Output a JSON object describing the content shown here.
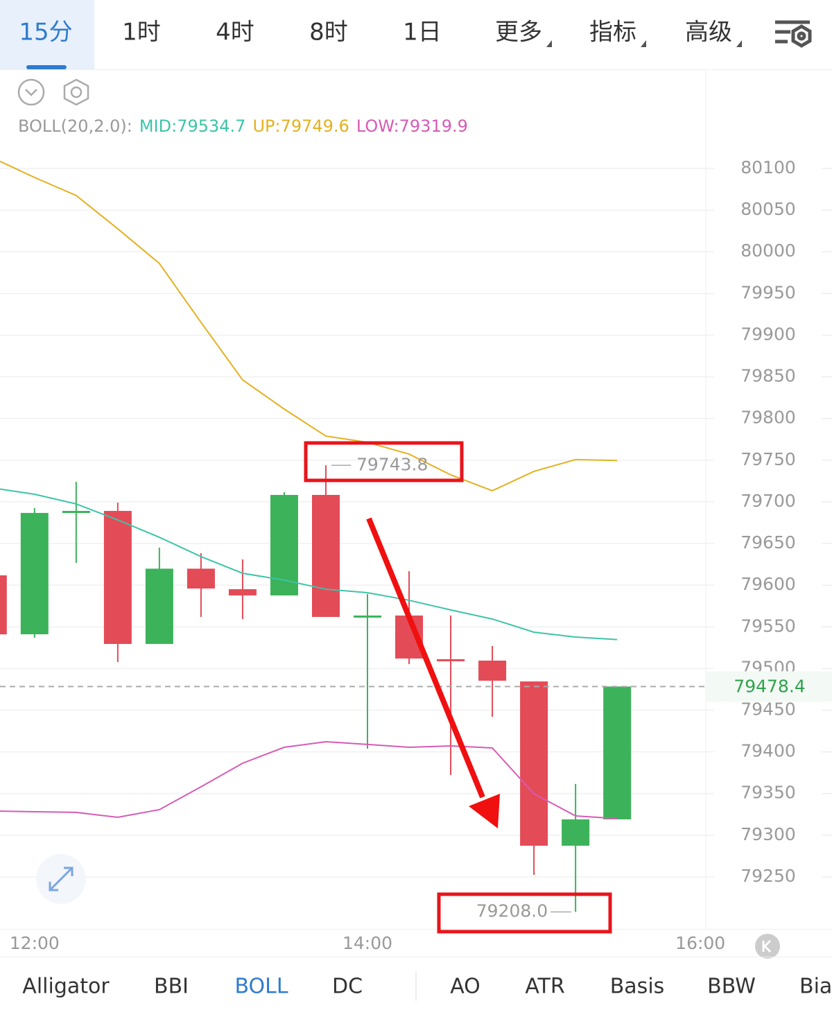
{
  "tabs": [
    "15分",
    "1时",
    "4时",
    "8时",
    "1日",
    "更多",
    "指标",
    "高级"
  ],
  "chart_data": {
    "type": "candlestick",
    "indicator": "BOLL(20,2.0):",
    "x": [
      0,
      1,
      2,
      3,
      4,
      5,
      6,
      7,
      8,
      9,
      10,
      11,
      12,
      13,
      14,
      15
    ],
    "xlim": [
      0.17,
      17.13
    ],
    "xticks": [
      {
        "value": 1,
        "label": "12:00"
      },
      {
        "value": 9,
        "label": "14:00"
      },
      {
        "value": 17,
        "label": "16:00"
      }
    ],
    "open": [
      79611.8,
      79541.1,
      79687.5,
      79689.1,
      79529.5,
      79619.8,
      79595.2,
      79587.7,
      79708.3,
      79561.9,
      79563.6,
      79511.2,
      79509.5,
      79484.5,
      79287.4,
      79319.0
    ],
    "high": [
      79620.0,
      79692.5,
      79724.1,
      79699.1,
      79645.1,
      79638.4,
      79630.9,
      79711.6,
      79743.8,
      79589.3,
      79616.8,
      79563.6,
      79527.0,
      79484.5,
      79361.5,
      79478.4
    ],
    "low": [
      79530.0,
      79536.9,
      79626.8,
      79507.8,
      79529.5,
      79561.9,
      79559.4,
      79587.7,
      79561.9,
      79403.9,
      79505.3,
      79372.3,
      79442.1,
      79252.5,
      79208.0,
      79319.0
    ],
    "close": [
      79541.0,
      79686.7,
      79689.1,
      79529.5,
      79619.8,
      79596.0,
      79587.7,
      79708.3,
      79561.9,
      79563.6,
      79512.0,
      79510.4,
      79485.4,
      79287.4,
      79319.0,
      79478.4
    ],
    "high_value_labels": [
      null,
      null,
      null,
      null,
      null,
      null,
      null,
      null,
      "79743.8",
      null,
      null,
      null,
      null,
      null,
      null,
      null
    ],
    "low_value_labels": [
      null,
      null,
      null,
      null,
      null,
      null,
      null,
      null,
      null,
      null,
      null,
      null,
      null,
      null,
      "79208.0",
      null
    ],
    "up_color": "#3cb35a",
    "down_color": "#e34b57",
    "series": [
      {
        "name": "MID:",
        "color": "#3cc4a8",
        "values": [
          79716.6,
          79709.1,
          79697.5,
          79678.3,
          79657.5,
          79634.3,
          79614.3,
          79606.0,
          79595.2,
          79591.0,
          79581.9,
          79570.3,
          79559.4,
          79543.6,
          79537.8,
          79534.7
        ]
      },
      {
        "name": "UP:",
        "color": "#e5b020",
        "values": [
          80112.5,
          80089.2,
          80067.6,
          80027.6,
          79986.0,
          79915.3,
          79846.3,
          79811.3,
          79778.9,
          79771.4,
          79757.3,
          79732.4,
          79713.3,
          79736.6,
          79750.7,
          79749.6
        ]
      },
      {
        "name": "LOW:",
        "color": "#d65bb5",
        "values": [
          79329.0,
          79328.2,
          79327.4,
          79321.5,
          79330.7,
          79358.1,
          79386.4,
          79405.5,
          79412.2,
          79408.9,
          79405.5,
          79407.2,
          79404.7,
          79349.8,
          79323.2,
          79319.9
        ]
      }
    ],
    "ylim": [
      79187.6,
      80123.3
    ],
    "yticks": [
      79250,
      79300,
      79350,
      79400,
      79450,
      79500,
      79550,
      79600,
      79650,
      79700,
      79750,
      79800,
      79850,
      79900,
      79950,
      80000,
      80050,
      80100
    ],
    "grid": true
  },
  "indicator_tabs": [
    "Alligator",
    "BBI",
    "BOLL",
    "DC",
    "AO",
    "ATR",
    "Basis",
    "BBW",
    "Bias"
  ]
}
